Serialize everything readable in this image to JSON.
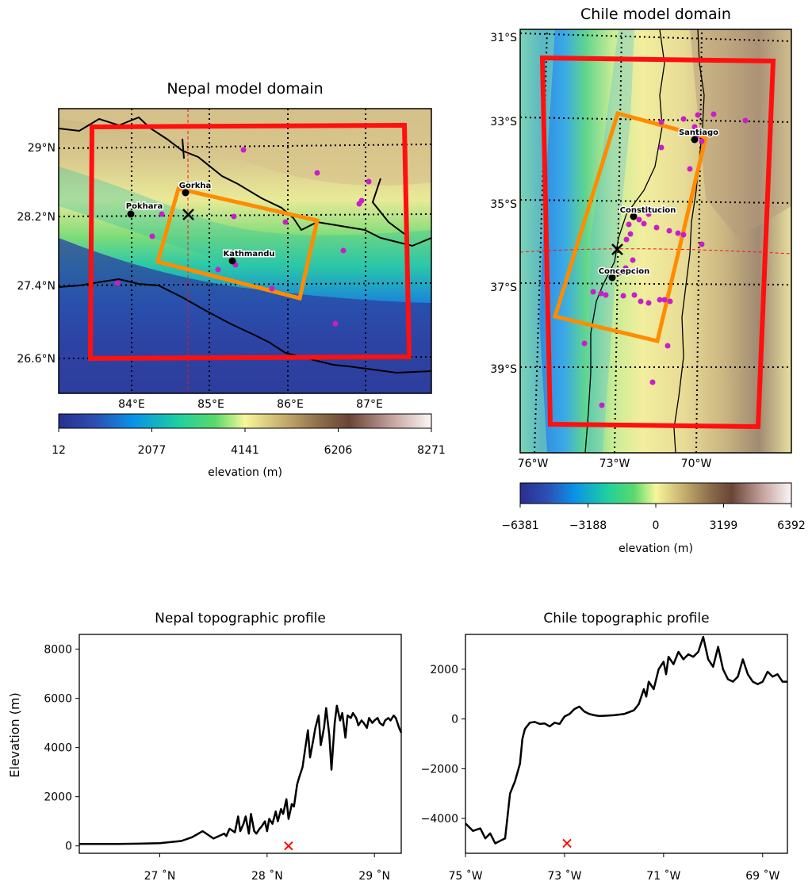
{
  "nepal_map": {
    "title": "Nepal model domain",
    "lat_labels": [
      "29°N",
      "28.2°N",
      "27.4°N",
      "26.6°N"
    ],
    "lon_labels": [
      "84°E",
      "85°E",
      "86°E",
      "87°E"
    ],
    "cities": [
      {
        "name": "Pokhara"
      },
      {
        "name": "Gorkha"
      },
      {
        "name": "Kathmandu"
      }
    ],
    "colorbar": {
      "ticks": [
        "12",
        "2077",
        "4141",
        "6206",
        "8271"
      ],
      "label": "elevation (m)",
      "min": 12,
      "max": 8271
    },
    "domain_outer_color": "#ff1010",
    "domain_inner_color": "#ff8c00",
    "station_color": "#c81ec8"
  },
  "chile_map": {
    "title": "Chile model domain",
    "lat_labels": [
      "31°S",
      "33°S",
      "35°S",
      "37°S",
      "39°S"
    ],
    "lon_labels": [
      "76°W",
      "73°W",
      "70°W"
    ],
    "cities": [
      {
        "name": "Santiago"
      },
      {
        "name": "Constitucion"
      },
      {
        "name": "Concepcion"
      }
    ],
    "colorbar": {
      "ticks": [
        "−6381",
        "−3188",
        "0",
        "3199",
        "6392"
      ],
      "label": "elevation (m)",
      "min": -6381,
      "max": 6392
    }
  },
  "colorbar_stops": [
    "#2a2f8c",
    "#2c4fb4",
    "#0a92e8",
    "#1ecfa0",
    "#5bd96b",
    "#f6f79a",
    "#c8b070",
    "#8a6e4a",
    "#6a4436",
    "#c9a8a4",
    "#fbf6f6"
  ],
  "chart_data": [
    {
      "type": "line",
      "title": "Nepal topographic profile",
      "ylabel": "Elevation (m)",
      "xlabel": "",
      "x_tick_labels": [
        "27 ˚N",
        "28 ˚N",
        "29 ˚N"
      ],
      "x_ticks": [
        27,
        28,
        29
      ],
      "y_ticks": [
        0,
        2000,
        4000,
        6000,
        8000
      ],
      "xlim": [
        26.25,
        29.25
      ],
      "ylim": [
        -300,
        8600
      ],
      "line_color": "#000000",
      "series": [
        {
          "x": [
            26.25,
            26.6,
            26.8,
            27.0,
            27.2,
            27.3,
            27.4,
            27.5,
            27.6,
            27.62,
            27.65,
            27.7,
            27.73,
            27.75,
            27.78,
            27.8,
            27.83,
            27.85,
            27.88,
            27.9,
            27.93,
            27.95,
            27.98,
            28.0,
            28.02,
            28.05,
            28.08,
            28.1,
            28.13,
            28.15,
            28.18,
            28.2,
            28.23,
            28.25,
            28.28,
            28.3,
            28.33,
            28.35,
            28.38,
            28.4,
            28.43,
            28.45,
            28.48,
            28.5,
            28.53,
            28.55,
            28.58,
            28.6,
            28.63,
            28.65,
            28.68,
            28.7,
            28.73,
            28.75,
            28.78,
            28.8,
            28.83,
            28.85,
            28.88,
            28.9,
            28.93,
            28.95,
            28.98,
            29.0,
            29.03,
            29.05,
            29.08,
            29.1,
            29.13,
            29.15,
            29.18,
            29.2,
            29.23,
            29.25
          ],
          "y": [
            80,
            80,
            90,
            110,
            200,
            350,
            600,
            300,
            500,
            400,
            700,
            550,
            1200,
            600,
            900,
            1200,
            500,
            1300,
            600,
            500,
            700,
            800,
            1000,
            600,
            1100,
            900,
            1400,
            1000,
            1500,
            1300,
            1900,
            1100,
            1700,
            1600,
            2500,
            2800,
            3200,
            3800,
            4700,
            3600,
            4300,
            4800,
            5300,
            4100,
            4800,
            5600,
            4500,
            3100,
            5000,
            5700,
            5100,
            5400,
            4400,
            5300,
            5200,
            5400,
            5200,
            4900,
            5100,
            5000,
            4800,
            5200,
            5000,
            5100,
            5200,
            5000,
            4900,
            5100,
            5200,
            5100,
            5300,
            5200,
            4800,
            4600
          ]
        }
      ],
      "marker": {
        "x": 28.2,
        "y": 0,
        "color": "#ff0000",
        "symbol": "x"
      }
    },
    {
      "type": "line",
      "title": "Chile topographic profile",
      "ylabel": "",
      "xlabel": "",
      "x_tick_labels": [
        "75 ˚W",
        "73 ˚W",
        "71 ˚W",
        "69 ˚W"
      ],
      "x_ticks": [
        -75,
        -73,
        -71,
        -69
      ],
      "y_ticks": [
        -4000,
        -2000,
        0,
        2000
      ],
      "xlim": [
        -75,
        -68.5
      ],
      "ylim": [
        -5400,
        3400
      ],
      "line_color": "#000000",
      "series": [
        {
          "x": [
            -75,
            -74.85,
            -74.7,
            -74.6,
            -74.5,
            -74.4,
            -74.3,
            -74.2,
            -74.1,
            -74.0,
            -73.9,
            -73.85,
            -73.8,
            -73.7,
            -73.6,
            -73.5,
            -73.4,
            -73.3,
            -73.2,
            -73.1,
            -73.0,
            -72.9,
            -72.8,
            -72.7,
            -72.6,
            -72.5,
            -72.4,
            -72.3,
            -72.2,
            -72.0,
            -71.8,
            -71.6,
            -71.5,
            -71.4,
            -71.35,
            -71.3,
            -71.2,
            -71.1,
            -71.0,
            -70.95,
            -70.9,
            -70.8,
            -70.7,
            -70.6,
            -70.5,
            -70.4,
            -70.3,
            -70.2,
            -70.1,
            -70.0,
            -69.9,
            -69.8,
            -69.7,
            -69.6,
            -69.5,
            -69.4,
            -69.3,
            -69.2,
            -69.1,
            -69.0,
            -68.9,
            -68.8,
            -68.7,
            -68.6,
            -68.5
          ],
          "y": [
            -4200,
            -4500,
            -4400,
            -4800,
            -4600,
            -5000,
            -4900,
            -4800,
            -3000,
            -2500,
            -1800,
            -800,
            -400,
            -150,
            -120,
            -200,
            -180,
            -300,
            -150,
            -200,
            100,
            200,
            400,
            500,
            300,
            200,
            150,
            120,
            130,
            150,
            200,
            350,
            600,
            1200,
            900,
            1500,
            1200,
            2000,
            2300,
            1800,
            2500,
            2200,
            2700,
            2400,
            2600,
            2500,
            2700,
            3300,
            2400,
            2100,
            2900,
            2000,
            1600,
            1500,
            1700,
            2400,
            1800,
            1500,
            1400,
            1500,
            1900,
            1700,
            1800,
            1500,
            1500
          ]
        }
      ],
      "marker": {
        "x": -72.95,
        "y": -5000,
        "color": "#ff0000",
        "symbol": "x"
      }
    }
  ]
}
